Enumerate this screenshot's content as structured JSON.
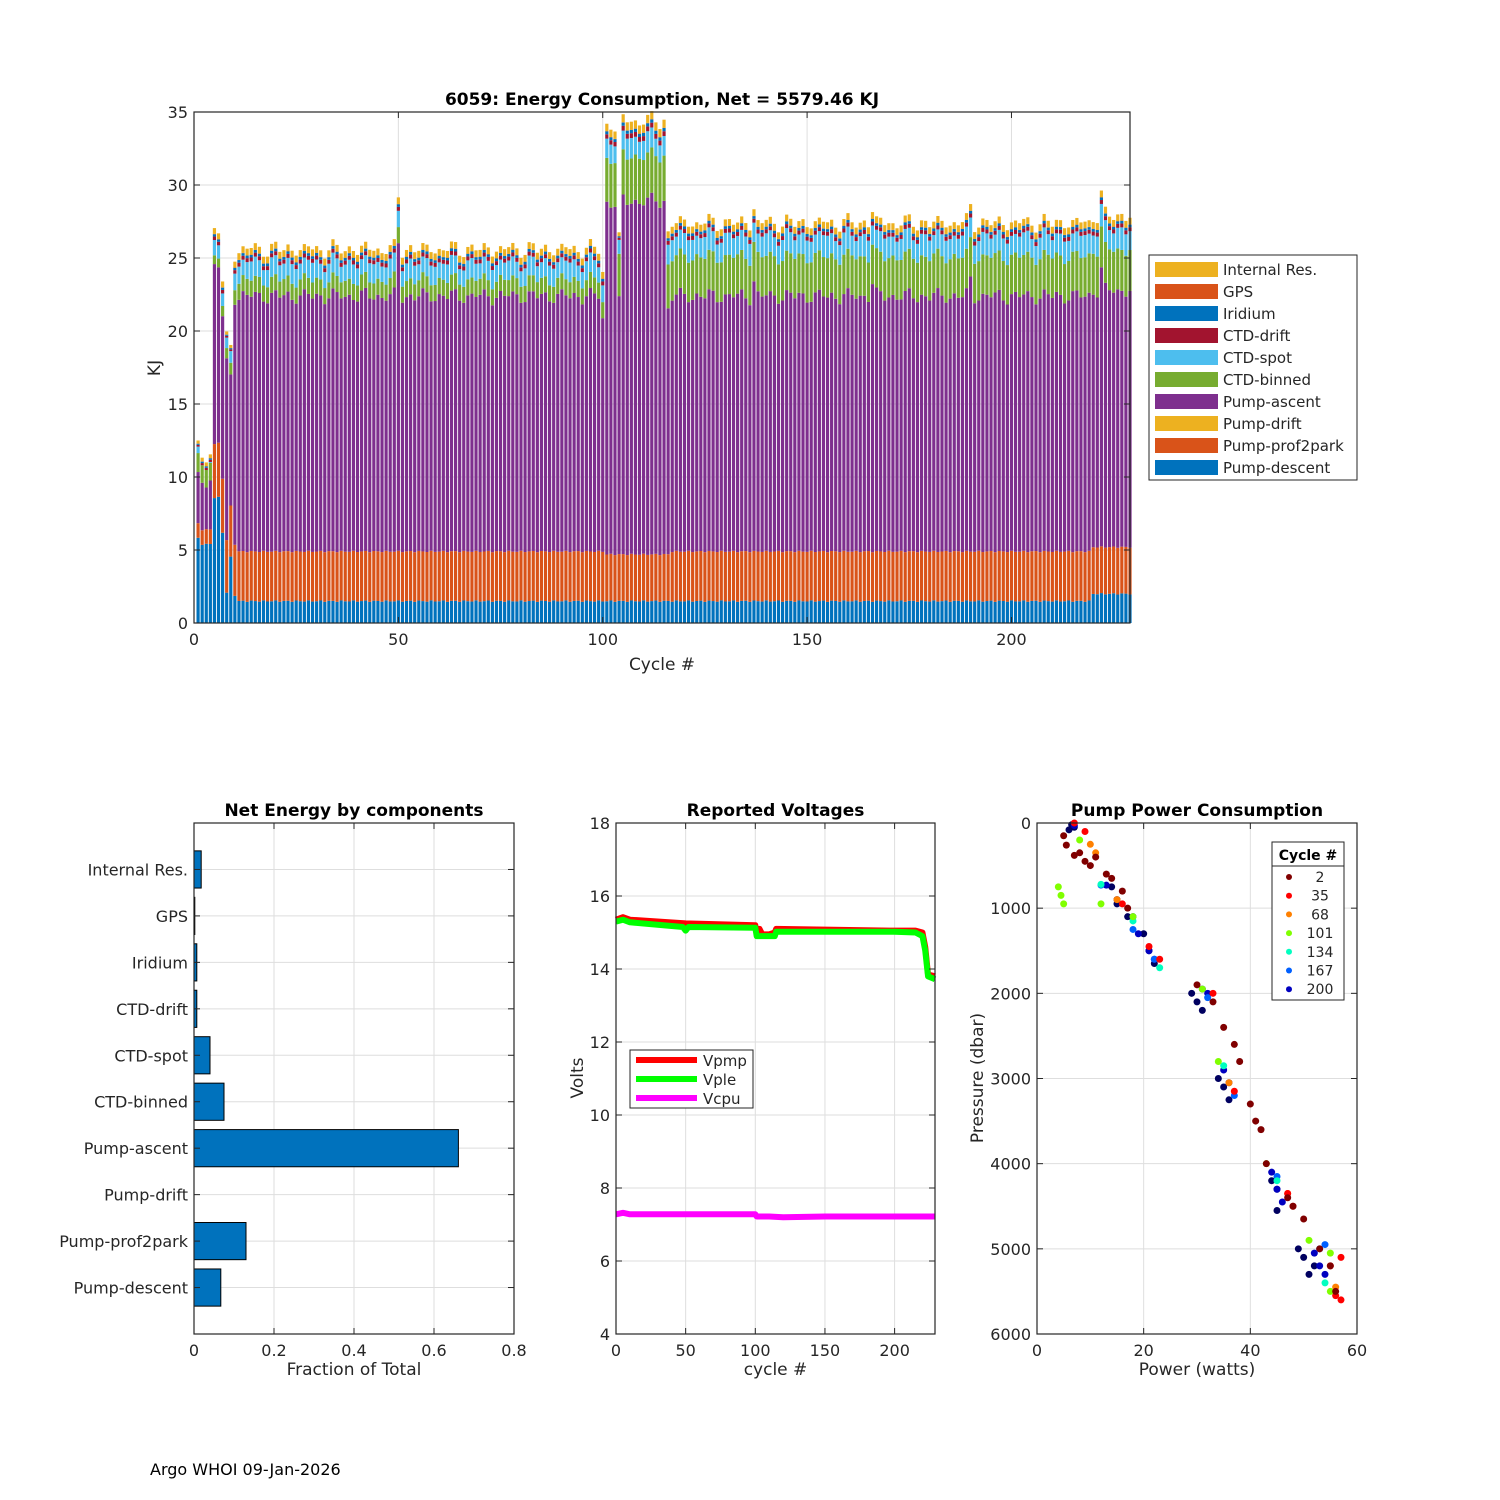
{
  "footer": "Argo WHOI 09-Jan-2026",
  "chart_data": [
    {
      "id": "energy",
      "type": "bar",
      "stacked": true,
      "title": "6059: Energy Consumption,  Net = 5579.46 KJ",
      "xlabel": "Cycle #",
      "ylabel": "KJ",
      "xlim": [
        0,
        229
      ],
      "ylim": [
        0,
        35
      ],
      "xticks": [
        0,
        50,
        100,
        150,
        200
      ],
      "yticks": [
        0,
        5,
        10,
        15,
        20,
        25,
        30,
        35
      ],
      "grid": true,
      "legend_position": "right",
      "legend": [
        "Internal Res.",
        "GPS",
        "Iridium",
        "CTD-drift",
        "CTD-spot",
        "CTD-binned",
        "Pump-ascent",
        "Pump-drift",
        "Pump-prof2park",
        "Pump-descent"
      ],
      "colors": {
        "Pump-descent": "#0072BD",
        "Pump-prof2park": "#D95319",
        "Pump-drift": "#EDB120",
        "Pump-ascent": "#7E2F8E",
        "CTD-binned": "#77AC30",
        "CTD-spot": "#4DBEEE",
        "CTD-drift": "#A2142F",
        "Iridium": "#0072BD",
        "GPS": "#D95319",
        "Internal Res.": "#EDB120"
      },
      "segments": [
        {
          "cycles": [
            1,
            1
          ],
          "descent": 5.8,
          "prof2park": 1.0,
          "ascent": 3.0,
          "binned": 1.3,
          "spot": 0.4,
          "top": 0.4
        },
        {
          "cycles": [
            2,
            4
          ],
          "descent": 5.4,
          "prof2park": 1.0,
          "ascent": 3.4,
          "binned": 1.2,
          "spot": 0.0,
          "top": 0.5
        },
        {
          "cycles": [
            5,
            6
          ],
          "descent": 8.6,
          "prof2park": 3.7,
          "ascent": 12.1,
          "binned": 0.6,
          "spot": 0.9,
          "top": 0.8
        },
        {
          "cycles": [
            7,
            7
          ],
          "descent": 6.2,
          "prof2park": 3.7,
          "ascent": 11.1,
          "binned": 0.7,
          "spot": 1.0,
          "top": 0.8
        },
        {
          "cycles": [
            8,
            8
          ],
          "descent": 2.1,
          "prof2park": 3.6,
          "ascent": 12.0,
          "binned": 0.7,
          "spot": 0.8,
          "top": 0.4
        },
        {
          "cycles": [
            9,
            9
          ],
          "descent": 4.5,
          "prof2park": 3.5,
          "ascent": 8.9,
          "binned": 0.8,
          "spot": 0.7,
          "top": 0.4
        },
        {
          "cycles": [
            10,
            10
          ],
          "descent": 1.9,
          "prof2park": 3.5,
          "ascent": 17.0,
          "binned": 1.0,
          "spot": 1.0,
          "top": 0.8
        },
        {
          "cycles": [
            11,
            99
          ],
          "descent": 1.5,
          "prof2park": 3.4,
          "ascent": 17.5,
          "binned": 1.1,
          "spot": 1.2,
          "top": 0.9
        },
        {
          "cycles": [
            100,
            100
          ],
          "descent": 1.5,
          "prof2park": 3.4,
          "ascent": 16.0,
          "binned": 1.1,
          "spot": 1.2,
          "top": 0.9
        },
        {
          "cycles": [
            101,
            103
          ],
          "descent": 1.5,
          "prof2park": 3.2,
          "ascent": 24.1,
          "binned": 3.0,
          "spot": 1.2,
          "top": 1.0
        },
        {
          "cycles": [
            104,
            104
          ],
          "descent": 1.5,
          "prof2park": 3.2,
          "ascent": 17.2,
          "binned": 2.9,
          "spot": 1.1,
          "top": 0.5
        },
        {
          "cycles": [
            105,
            115
          ],
          "descent": 1.5,
          "prof2park": 3.2,
          "ascent": 24.2,
          "binned": 3.1,
          "spot": 1.3,
          "top": 1.1
        },
        {
          "cycles": [
            116,
            116
          ],
          "descent": 1.5,
          "prof2park": 3.2,
          "ascent": 16.8,
          "binned": 3.0,
          "spot": 1.2,
          "top": 0.9
        },
        {
          "cycles": [
            117,
            219
          ],
          "descent": 1.5,
          "prof2park": 3.4,
          "ascent": 17.5,
          "binned": 2.7,
          "spot": 1.4,
          "top": 0.9
        },
        {
          "cycles": [
            220,
            229
          ],
          "descent": 2.0,
          "prof2park": 3.2,
          "ascent": 17.6,
          "binned": 2.8,
          "spot": 1.4,
          "top": 0.9
        }
      ],
      "spikes": [
        {
          "cycle": 50,
          "extra": 3.5
        },
        {
          "cycle": 137,
          "extra": 1.0
        },
        {
          "cycle": 166,
          "extra": 1.0
        },
        {
          "cycle": 190,
          "extra": 1.1
        },
        {
          "cycle": 222,
          "extra": 1.3
        }
      ]
    },
    {
      "id": "fraction",
      "type": "bar",
      "orientation": "horizontal",
      "title": "Net Energy by components",
      "xlabel": "Fraction of Total",
      "xlim": [
        0,
        0.8
      ],
      "xticks": [
        0,
        0.2,
        0.4,
        0.6,
        0.8
      ],
      "xtick_labels": [
        "0",
        "0.2",
        "0.4",
        "0.6",
        "0.8"
      ],
      "grid": true,
      "categories": [
        "Internal Res.",
        "GPS",
        "Iridium",
        "CTD-drift",
        "CTD-spot",
        "CTD-binned",
        "Pump-ascent",
        "Pump-drift",
        "Pump-prof2park",
        "Pump-descent"
      ],
      "values": [
        0.018,
        0.002,
        0.007,
        0.007,
        0.04,
        0.075,
        0.661,
        0.0,
        0.13,
        0.067
      ],
      "color": "#0072BD"
    },
    {
      "id": "voltages",
      "type": "line",
      "title": "Reported Voltages",
      "xlabel": "cycle #",
      "ylabel": "Volts",
      "xlim": [
        0,
        229
      ],
      "ylim": [
        4,
        18
      ],
      "xticks": [
        0,
        50,
        100,
        150,
        200
      ],
      "yticks": [
        4,
        6,
        8,
        10,
        12,
        14,
        16,
        18
      ],
      "grid": true,
      "legend_position": "center-left",
      "series": [
        {
          "name": "Vpmp",
          "color": "#FF0000",
          "x": [
            0,
            5,
            10,
            50,
            100,
            101,
            103,
            105,
            110,
            114,
            115,
            150,
            200,
            215,
            220,
            222,
            224,
            229
          ],
          "y": [
            15.35,
            15.42,
            15.35,
            15.25,
            15.2,
            14.95,
            15.1,
            14.95,
            14.95,
            15.0,
            15.1,
            15.08,
            15.05,
            15.05,
            15.0,
            14.6,
            13.85,
            13.8
          ]
        },
        {
          "name": "Vple",
          "color": "#00FF00",
          "x": [
            0,
            5,
            10,
            48,
            50,
            52,
            100,
            101,
            104,
            110,
            114,
            115,
            150,
            200,
            215,
            220,
            222,
            224,
            229
          ],
          "y": [
            15.3,
            15.35,
            15.28,
            15.15,
            15.05,
            15.15,
            15.13,
            14.9,
            14.9,
            14.9,
            14.9,
            15.02,
            15.02,
            15.02,
            15.0,
            14.9,
            14.5,
            13.8,
            13.72
          ]
        },
        {
          "name": "Vcpu",
          "color": "#FF00FF",
          "x": [
            0,
            5,
            10,
            50,
            100,
            101,
            110,
            120,
            150,
            200,
            229
          ],
          "y": [
            7.28,
            7.32,
            7.28,
            7.28,
            7.28,
            7.22,
            7.22,
            7.2,
            7.22,
            7.22,
            7.22
          ]
        }
      ]
    },
    {
      "id": "pump",
      "type": "scatter",
      "title": "Pump Power Consumption",
      "xlabel": "Power (watts)",
      "ylabel": "Pressure (dbar)",
      "xlim": [
        0,
        60
      ],
      "ylim": [
        0,
        6000
      ],
      "y_reversed": true,
      "xticks": [
        0,
        20,
        40,
        60
      ],
      "yticks": [
        0,
        1000,
        2000,
        3000,
        4000,
        5000,
        6000
      ],
      "grid": true,
      "legend_title": "Cycle #",
      "legend_position": "top-right",
      "legend": [
        {
          "label": "2",
          "color": "#800000"
        },
        {
          "label": "35",
          "color": "#FF0000"
        },
        {
          "label": "68",
          "color": "#FF8000"
        },
        {
          "label": "101",
          "color": "#80FF00"
        },
        {
          "label": "134",
          "color": "#00FFC0"
        },
        {
          "label": "167",
          "color": "#0060FF"
        },
        {
          "label": "200",
          "color": "#0000C0"
        }
      ],
      "clusters": [
        {
          "color": "#000060",
          "points": [
            [
              6.5,
              20
            ],
            [
              7,
              50
            ],
            [
              6,
              80
            ],
            [
              14,
              750
            ],
            [
              15,
              950
            ],
            [
              17,
              1100
            ],
            [
              20,
              1300
            ],
            [
              21,
              1500
            ],
            [
              22,
              1650
            ],
            [
              29,
              2000
            ],
            [
              30,
              2100
            ],
            [
              31,
              2200
            ],
            [
              34,
              3000
            ],
            [
              35,
              3100
            ],
            [
              36,
              3250
            ],
            [
              44,
              4200
            ],
            [
              45,
              4300
            ],
            [
              45,
              4550
            ],
            [
              49,
              5000
            ],
            [
              50,
              5100
            ],
            [
              51,
              5300
            ],
            [
              52,
              5200
            ]
          ]
        },
        {
          "color": "#0000C0",
          "points": [
            [
              7,
              30
            ],
            [
              13,
              730
            ],
            [
              15,
              900
            ],
            [
              18,
              1100
            ],
            [
              19,
              1300
            ],
            [
              21,
              1500
            ],
            [
              22,
              1600
            ],
            [
              31,
              1950
            ],
            [
              32,
              2000
            ],
            [
              35,
              2900
            ],
            [
              36,
              3050
            ],
            [
              44,
              4100
            ],
            [
              45,
              4300
            ],
            [
              46,
              4450
            ],
            [
              52,
              5050
            ],
            [
              53,
              5200
            ],
            [
              54,
              5300
            ]
          ]
        },
        {
          "color": "#0060FF",
          "points": [
            [
              12,
              730
            ],
            [
              18,
              1250
            ],
            [
              22,
              1600
            ],
            [
              32,
              2050
            ],
            [
              37,
              3200
            ],
            [
              45,
              4150
            ],
            [
              53,
              5000
            ],
            [
              54,
              4950
            ]
          ]
        },
        {
          "color": "#00FFC0",
          "points": [
            [
              12,
              720
            ],
            [
              18,
              1150
            ],
            [
              23,
              1700
            ],
            [
              35,
              2850
            ],
            [
              45,
              4200
            ],
            [
              54,
              5400
            ]
          ]
        },
        {
          "color": "#80FF00",
          "points": [
            [
              4,
              750
            ],
            [
              4.5,
              850
            ],
            [
              5,
              950
            ],
            [
              12,
              950
            ],
            [
              8,
              200
            ],
            [
              18,
              1100
            ],
            [
              31,
              1950
            ],
            [
              34,
              2800
            ],
            [
              43,
              4000
            ],
            [
              51,
              4900
            ],
            [
              55,
              5050
            ],
            [
              55,
              5500
            ]
          ]
        },
        {
          "color": "#FF8000",
          "points": [
            [
              10,
              250
            ],
            [
              11,
              350
            ],
            [
              15,
              900
            ],
            [
              36,
              3050
            ],
            [
              47,
              4350
            ],
            [
              56,
              5450
            ]
          ]
        },
        {
          "color": "#FF0000",
          "points": [
            [
              7,
              0
            ],
            [
              9,
              100
            ],
            [
              16,
              950
            ],
            [
              21,
              1450
            ],
            [
              23,
              1600
            ],
            [
              33,
              2000
            ],
            [
              37,
              3150
            ],
            [
              47,
              4350
            ],
            [
              48,
              4500
            ],
            [
              55,
              5200
            ],
            [
              57,
              5100
            ],
            [
              56,
              5550
            ],
            [
              57,
              5600
            ]
          ]
        },
        {
          "color": "#800000",
          "points": [
            [
              5,
              150
            ],
            [
              5.5,
              260
            ],
            [
              7,
              380
            ],
            [
              8,
              350
            ],
            [
              9,
              450
            ],
            [
              10,
              500
            ],
            [
              11,
              400
            ],
            [
              13,
              600
            ],
            [
              14,
              650
            ],
            [
              16,
              800
            ],
            [
              17,
              1000
            ],
            [
              30,
              1900
            ],
            [
              33,
              2100
            ],
            [
              35,
              2400
            ],
            [
              37,
              2600
            ],
            [
              38,
              2800
            ],
            [
              40,
              3300
            ],
            [
              41,
              3500
            ],
            [
              42,
              3600
            ],
            [
              43,
              4000
            ],
            [
              47,
              4400
            ],
            [
              48,
              4500
            ],
            [
              50,
              4650
            ],
            [
              53,
              5000
            ],
            [
              55,
              5200
            ],
            [
              56,
              5500
            ]
          ]
        }
      ]
    }
  ]
}
